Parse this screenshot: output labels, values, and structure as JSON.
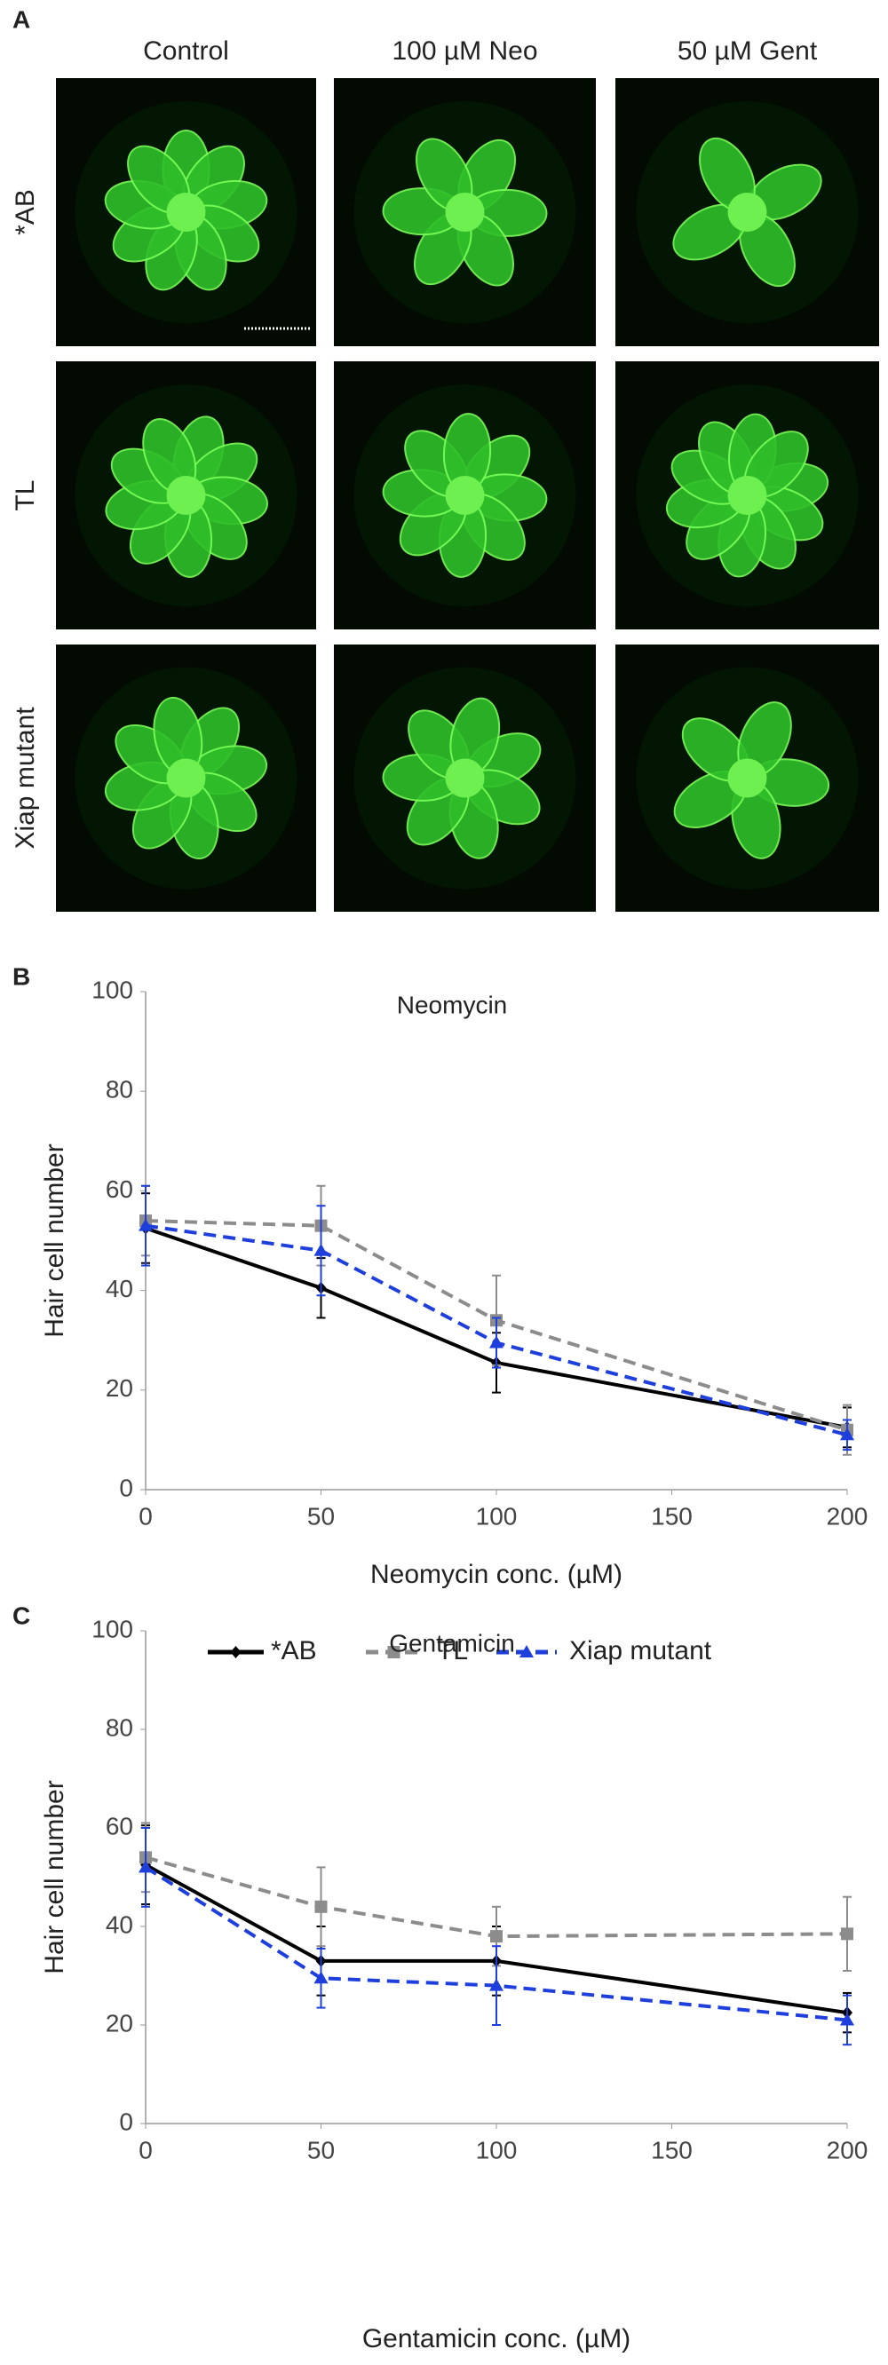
{
  "panel_labels": [
    "A",
    "B",
    "C"
  ],
  "panel_a": {
    "columns": [
      "Control",
      "100 µM Neo",
      "50 µM Gent"
    ],
    "rows": [
      "*AB",
      "TL",
      "Xiap mutant"
    ]
  },
  "chart_data": [
    {
      "type": "line",
      "title": "Neomycin",
      "x_label": "Neomycin conc. (µM)",
      "y_label": "Hair cell number",
      "x": [
        0,
        50,
        100,
        200
      ],
      "xlim": [
        0,
        200
      ],
      "xticks": [
        0,
        50,
        100,
        150,
        200
      ],
      "ylim": [
        0,
        100
      ],
      "yticks": [
        0,
        20,
        40,
        60,
        80,
        100
      ],
      "grid": false,
      "legend": "bottom",
      "series": [
        {
          "name": "*AB",
          "color": "#000000",
          "line_style": "solid",
          "marker": "diamond",
          "values": [
            52.5,
            40.5,
            25.5,
            12.5
          ],
          "errors": [
            7,
            6,
            6,
            4
          ]
        },
        {
          "name": "TL",
          "color": "#8c8c8c",
          "line_style": "dashed",
          "marker": "square",
          "values": [
            54,
            53,
            34,
            12
          ],
          "errors": [
            7,
            8,
            9,
            5
          ]
        },
        {
          "name": "Xiap mutant",
          "color": "#1f3fdc",
          "line_style": "dashed",
          "marker": "triangle",
          "values": [
            53,
            48,
            29.5,
            11
          ],
          "errors": [
            8,
            9,
            5,
            3
          ]
        }
      ]
    },
    {
      "type": "line",
      "title": "Gentamicin",
      "x_label": "Gentamicin conc. (µM)",
      "y_label": "Hair cell number",
      "x": [
        0,
        50,
        100,
        200
      ],
      "xlim": [
        0,
        200
      ],
      "xticks": [
        0,
        50,
        100,
        150,
        200
      ],
      "ylim": [
        0,
        100
      ],
      "yticks": [
        0,
        20,
        40,
        60,
        80,
        100
      ],
      "grid": false,
      "series": [
        {
          "name": "*AB",
          "color": "#000000",
          "line_style": "solid",
          "marker": "diamond",
          "values": [
            52.5,
            33,
            33,
            22.5
          ],
          "errors": [
            8,
            7,
            7,
            4
          ]
        },
        {
          "name": "TL",
          "color": "#8c8c8c",
          "line_style": "dashed",
          "marker": "square",
          "values": [
            54,
            44,
            38,
            38.5
          ],
          "errors": [
            7,
            8,
            6,
            7.5
          ]
        },
        {
          "name": "Xiap mutant",
          "color": "#1f3fdc",
          "line_style": "dashed",
          "marker": "triangle",
          "values": [
            52,
            29.5,
            28,
            21
          ],
          "errors": [
            8,
            6,
            8,
            5
          ]
        }
      ]
    }
  ]
}
